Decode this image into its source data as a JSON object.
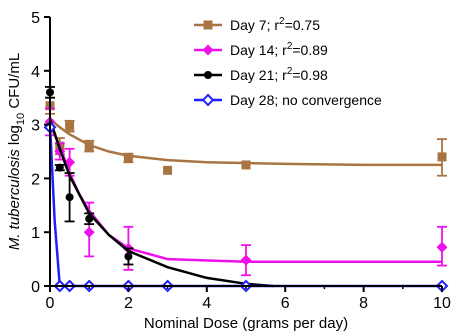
{
  "chart_data": {
    "type": "scatter",
    "xlabel": "Nominal Dose (grams per day)",
    "ylabel": {
      "prefix": "M. tuberculosis",
      "suffix": " log",
      "sub": "10",
      "unit": " CFU/mL"
    },
    "xlim": [
      0,
      10
    ],
    "ylim": [
      0,
      5
    ],
    "xticks": [
      "0",
      "2",
      "4",
      "6",
      "8",
      "10"
    ],
    "yticks": [
      "0",
      "1",
      "2",
      "3",
      "4",
      "5"
    ],
    "grid": false,
    "legend_position": "top-right",
    "series": [
      {
        "name": "Day 7",
        "legend": {
          "before": "Day 7; r",
          "sup": "2",
          "after": "=0.75"
        },
        "color": "#a87542",
        "marker": "square",
        "points": [
          {
            "x": 0,
            "y": 3.35,
            "lo": 3.2,
            "hi": 3.5
          },
          {
            "x": 0.25,
            "y": 2.6,
            "lo": 2.45,
            "hi": 2.75
          },
          {
            "x": 0.5,
            "y": 2.97,
            "lo": 2.87,
            "hi": 3.07
          },
          {
            "x": 1,
            "y": 2.6,
            "lo": 2.5,
            "hi": 2.7
          },
          {
            "x": 2,
            "y": 2.38,
            "lo": 2.3,
            "hi": 2.46
          },
          {
            "x": 3,
            "y": 2.15,
            "lo": 2.15,
            "hi": 2.15
          },
          {
            "x": 5,
            "y": 2.25,
            "lo": 2.25,
            "hi": 2.25
          },
          {
            "x": 10,
            "y": 2.4,
            "lo": 2.05,
            "hi": 2.73
          }
        ],
        "fit": [
          [
            0,
            3.1
          ],
          [
            0.25,
            2.95
          ],
          [
            0.5,
            2.82
          ],
          [
            1,
            2.62
          ],
          [
            1.5,
            2.5
          ],
          [
            2,
            2.42
          ],
          [
            3,
            2.34
          ],
          [
            4,
            2.3
          ],
          [
            6,
            2.27
          ],
          [
            8,
            2.25
          ],
          [
            10,
            2.25
          ]
        ]
      },
      {
        "name": "Day 14",
        "legend": {
          "before": "Day 14; r",
          "sup": "2",
          "after": "=0.89"
        },
        "color": "#ee11ee",
        "marker": "diamond",
        "points": [
          {
            "x": 0,
            "y": 3.05,
            "lo": 2.8,
            "hi": 3.3
          },
          {
            "x": 0.25,
            "y": 2.5,
            "lo": 2.35,
            "hi": 2.65
          },
          {
            "x": 0.5,
            "y": 2.3,
            "lo": 2.05,
            "hi": 2.55
          },
          {
            "x": 1,
            "y": 1.0,
            "lo": 0.55,
            "hi": 1.55
          },
          {
            "x": 2,
            "y": 0.7,
            "lo": 0.3,
            "hi": 1.1
          },
          {
            "x": 3,
            "y": 0,
            "lo": 0,
            "hi": 0
          },
          {
            "x": 5,
            "y": 0.48,
            "lo": 0.2,
            "hi": 0.76
          },
          {
            "x": 10,
            "y": 0.72,
            "lo": 0.38,
            "hi": 1.1
          }
        ],
        "fit": [
          [
            0,
            3.0
          ],
          [
            0.25,
            2.6
          ],
          [
            0.5,
            2.1
          ],
          [
            0.75,
            1.7
          ],
          [
            1,
            1.4
          ],
          [
            1.5,
            0.95
          ],
          [
            2,
            0.7
          ],
          [
            3,
            0.5
          ],
          [
            5,
            0.45
          ],
          [
            10,
            0.45
          ]
        ]
      },
      {
        "name": "Day 21",
        "legend": {
          "before": "Day 21; r",
          "sup": "2",
          "after": "=0.98"
        },
        "color": "#000000",
        "marker": "circle",
        "points": [
          {
            "x": 0,
            "y": 3.6,
            "lo": 3.5,
            "hi": 3.7
          },
          {
            "x": 0.25,
            "y": 2.2,
            "lo": 2.15,
            "hi": 2.25
          },
          {
            "x": 0.5,
            "y": 1.65,
            "lo": 1.2,
            "hi": 2.1
          },
          {
            "x": 1,
            "y": 1.25,
            "lo": 1.15,
            "hi": 1.35
          },
          {
            "x": 2,
            "y": 0.55,
            "lo": 0.4,
            "hi": 0.7
          },
          {
            "x": 5,
            "y": 0,
            "lo": 0,
            "hi": 0
          }
        ],
        "fit": [
          [
            0,
            3.1
          ],
          [
            0.25,
            2.55
          ],
          [
            0.5,
            2.05
          ],
          [
            0.75,
            1.7
          ],
          [
            1,
            1.35
          ],
          [
            1.5,
            0.95
          ],
          [
            2,
            0.65
          ],
          [
            3,
            0.35
          ],
          [
            4,
            0.15
          ],
          [
            5,
            0.04
          ],
          [
            5.7,
            0
          ]
        ]
      },
      {
        "name": "Day 28",
        "legend": {
          "before": "Day 28; no convergence",
          "sup": "",
          "after": ""
        },
        "color": "#1f1fff",
        "marker": "diamond-open",
        "points": [
          {
            "x": 0,
            "y": 2.95,
            "lo": 2.95,
            "hi": 2.95
          },
          {
            "x": 0.25,
            "y": 0,
            "lo": 0,
            "hi": 0
          },
          {
            "x": 0.5,
            "y": 0,
            "lo": 0,
            "hi": 0
          },
          {
            "x": 1,
            "y": 0,
            "lo": 0,
            "hi": 0
          },
          {
            "x": 2,
            "y": 0,
            "lo": 0,
            "hi": 0
          },
          {
            "x": 3,
            "y": 0,
            "lo": 0,
            "hi": 0
          },
          {
            "x": 5,
            "y": 0,
            "lo": 0,
            "hi": 0
          },
          {
            "x": 10,
            "y": 0,
            "lo": 0,
            "hi": 0
          }
        ],
        "fit": [
          [
            0,
            3.0
          ],
          [
            0.12,
            1.2
          ],
          [
            0.25,
            0
          ],
          [
            10,
            0
          ]
        ]
      }
    ]
  }
}
